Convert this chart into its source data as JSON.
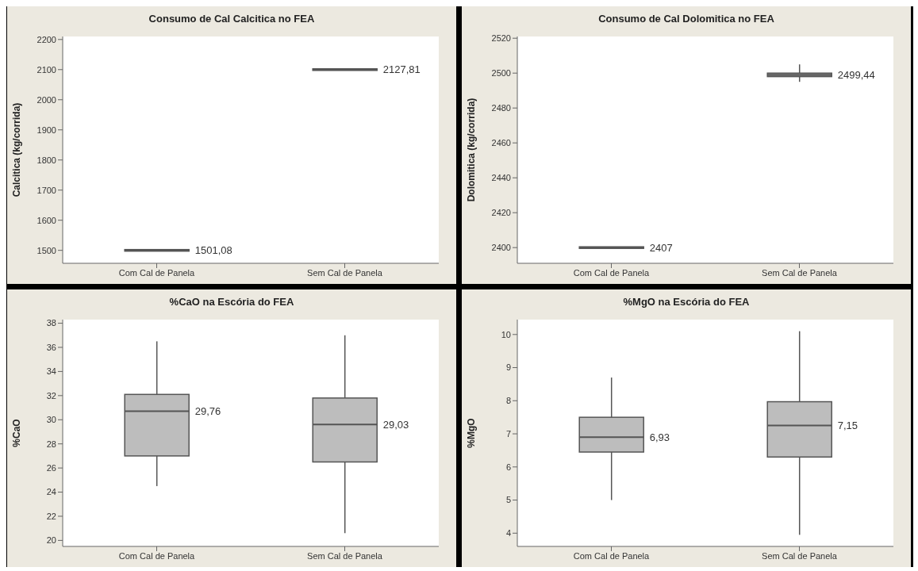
{
  "chart_data": [
    {
      "type": "box",
      "title": "Consumo de Cal Calcitica no FEA",
      "ylabel": "Calcitica (kg/corrida)",
      "categories": [
        "Com Cal de Panela",
        "Sem Cal de Panela"
      ],
      "color": "#000000",
      "boxes": [
        {
          "low": 1500,
          "q1": 1500,
          "median": 1500,
          "q3": 1500,
          "high": 1500
        },
        {
          "low": 2100,
          "q1": 2100,
          "median": 2100,
          "q3": 2100,
          "high": 2100
        }
      ],
      "ylim": [
        1457,
        2210
      ],
      "yticks": [
        1500,
        1600,
        1700,
        1800,
        1900,
        2000,
        2100,
        2200
      ],
      "annotations": [
        "1501,08",
        "2127,81"
      ]
    },
    {
      "type": "box",
      "title": "Consumo de Cal Dolomitica no FEA",
      "ylabel": "Dolomitica (kg/corrida)",
      "categories": [
        "Com Cal de Panela",
        "Sem Cal de Panela"
      ],
      "color": "#9a9a9a",
      "boxes": [
        {
          "low": 2400,
          "q1": 2399.5,
          "median": 2400,
          "q3": 2400.5,
          "high": 2400
        },
        {
          "low": 2495,
          "q1": 2498,
          "median": 2499,
          "q3": 2500,
          "high": 2505
        }
      ],
      "ylim": [
        2391,
        2521
      ],
      "yticks": [
        2400,
        2420,
        2440,
        2460,
        2480,
        2500,
        2520
      ],
      "annotations": [
        "2407",
        "2499,44"
      ]
    },
    {
      "type": "box",
      "title": "%CaO na Escória do FEA",
      "ylabel": "%CaO",
      "categories": [
        "Com Cal de Panela",
        "Sem Cal de Panela"
      ],
      "color": "#bdbdbd",
      "boxes": [
        {
          "low": 24.5,
          "q1": 27,
          "median": 30.7,
          "q3": 32.1,
          "high": 36.5
        },
        {
          "low": 20.6,
          "q1": 26.5,
          "median": 29.6,
          "q3": 31.8,
          "high": 37
        }
      ],
      "ylim": [
        19.5,
        38.3
      ],
      "yticks": [
        20,
        22,
        24,
        26,
        28,
        30,
        32,
        34,
        36,
        38
      ],
      "annotations": [
        "29,76",
        "29,03"
      ]
    },
    {
      "type": "box",
      "title": "%MgO na Escória do FEA",
      "ylabel": "%MgO",
      "categories": [
        "Com Cal de Panela",
        "Sem Cal de Panela"
      ],
      "color": "#bdbdbd",
      "boxes": [
        {
          "low": 5,
          "q1": 6.45,
          "median": 6.9,
          "q3": 7.5,
          "high": 8.7
        },
        {
          "low": 3.95,
          "q1": 6.3,
          "median": 7.25,
          "q3": 7.97,
          "high": 10.1
        }
      ],
      "ylim": [
        3.6,
        10.45
      ],
      "yticks": [
        4,
        5,
        6,
        7,
        8,
        9,
        10
      ],
      "annotations": [
        "6,93",
        "7,15"
      ]
    }
  ]
}
